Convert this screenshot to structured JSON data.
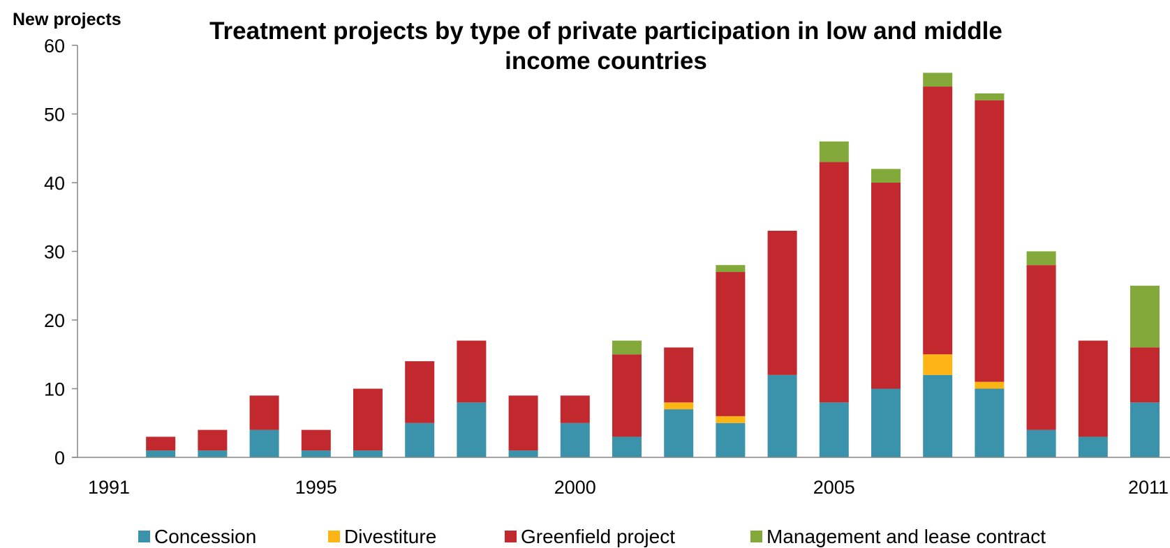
{
  "chart_data": {
    "type": "bar",
    "stacked": true,
    "title_line1": "Treatment projects by type of private participation in low and middle",
    "title_line2": "income countries",
    "ylabel": "New projects",
    "xlabel": "",
    "ylim": [
      0,
      60
    ],
    "yticks": [
      0,
      10,
      20,
      30,
      40,
      50,
      60
    ],
    "categories": [
      "1991",
      "1992",
      "1993",
      "1994",
      "1995",
      "1996",
      "1997",
      "1998",
      "1999",
      "2000",
      "2001",
      "2002",
      "2003",
      "2004",
      "2005",
      "2006",
      "2007",
      "2008",
      "2009",
      "2010",
      "2011"
    ],
    "xtick_labels": [
      "1991",
      "1995",
      "2000",
      "2005",
      "2011"
    ],
    "grid": false,
    "legend_position": "bottom",
    "series": [
      {
        "name": "Concession",
        "color": "#3a93aa",
        "values": [
          0,
          1,
          1,
          4,
          1,
          1,
          5,
          8,
          1,
          5,
          3,
          7,
          5,
          12,
          8,
          10,
          12,
          10,
          4,
          3,
          8
        ]
      },
      {
        "name": "Divestiture",
        "color": "#fdb515",
        "values": [
          0,
          0,
          0,
          0,
          0,
          0,
          0,
          0,
          0,
          0,
          0,
          1,
          1,
          0,
          0,
          0,
          3,
          1,
          0,
          0,
          0
        ]
      },
      {
        "name": "Greenfield project",
        "color": "#c1292e",
        "values": [
          0,
          2,
          3,
          5,
          3,
          9,
          9,
          9,
          8,
          4,
          12,
          8,
          21,
          21,
          35,
          30,
          39,
          41,
          24,
          14,
          8
        ]
      },
      {
        "name": "Management and lease contract",
        "color": "#82a93a",
        "values": [
          0,
          0,
          0,
          0,
          0,
          0,
          0,
          0,
          0,
          0,
          2,
          0,
          1,
          0,
          3,
          2,
          2,
          1,
          2,
          0,
          9
        ]
      }
    ]
  }
}
